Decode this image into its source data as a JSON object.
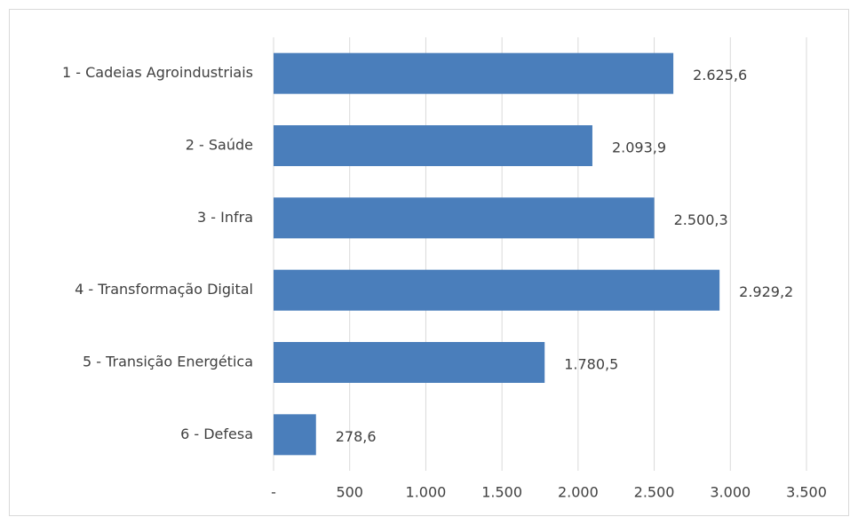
{
  "chart_data": {
    "type": "bar",
    "orientation": "horizontal",
    "categories": [
      "1 - Cadeias Agroindustriais",
      "2 - Saúde",
      "3 - Infra",
      "4 - Transformação Digital",
      "5 - Transição Energética",
      "6 - Defesa"
    ],
    "values": [
      2625.6,
      2093.9,
      2500.3,
      2929.2,
      1780.5,
      278.6
    ],
    "value_labels": [
      "2.625,6",
      "2.093,9",
      "2.500,3",
      "2.929,2",
      "1.780,5",
      "278,6"
    ],
    "color": "#4a7ebb",
    "xlim": [
      0,
      3500
    ],
    "xticks": [
      {
        "value": 0,
        "label": "-"
      },
      500,
      {
        "value": 1000,
        "label": "1.000"
      },
      {
        "value": 1500,
        "label": "1.500"
      },
      {
        "value": 2000,
        "label": "2.000"
      },
      {
        "value": 2500,
        "label": "2.500"
      },
      {
        "value": 3000,
        "label": "3.000"
      },
      {
        "value": 3500,
        "label": "3.500"
      }
    ],
    "grid": true
  }
}
